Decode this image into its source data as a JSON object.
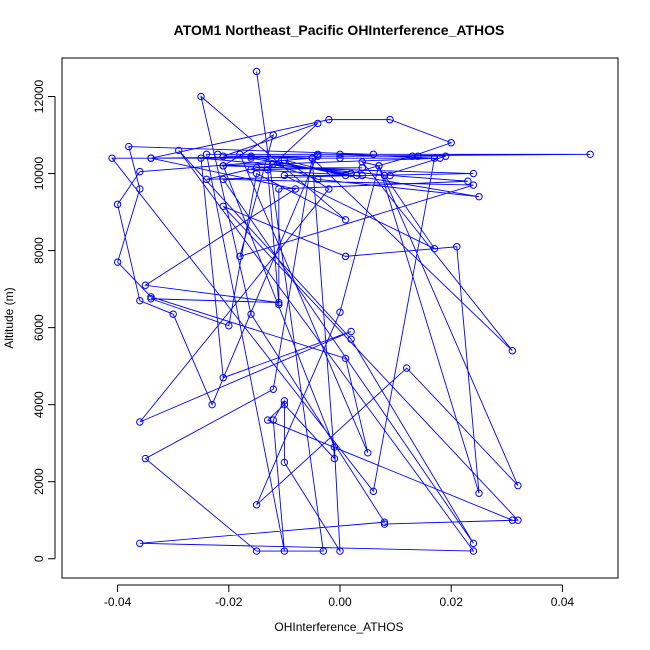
{
  "chart_data": {
    "type": "line",
    "title": "ATOM1 Northeast_Pacific OHInterference_ATHOS",
    "xlabel": "OHInterference_ATHOS",
    "ylabel": "Altitude (m)",
    "xlim": [
      -0.05,
      0.05
    ],
    "ylim": [
      -500,
      13000
    ],
    "x_ticks": [
      -0.04,
      -0.02,
      0.0,
      0.02,
      0.04
    ],
    "x_tick_labels": [
      "-0.04",
      "-0.02",
      "0.00",
      "0.02",
      "0.04"
    ],
    "y_ticks": [
      0,
      2000,
      4000,
      6000,
      8000,
      10000,
      12000
    ],
    "y_tick_labels": [
      "0",
      "2000",
      "4000",
      "6000",
      "8000",
      "10000",
      "12000"
    ],
    "grid": false,
    "legend": "none",
    "marker": "open-circle",
    "series_color": "#0000ff",
    "series": [
      {
        "points": [
          [
            -0.015,
            12650
          ],
          [
            -0.003,
            200
          ],
          [
            -0.015,
            200
          ],
          [
            -0.035,
            2600
          ],
          [
            -0.012,
            4400
          ],
          [
            -0.005,
            10400
          ],
          [
            -0.036,
            10050
          ],
          [
            -0.04,
            9200
          ],
          [
            -0.036,
            6700
          ],
          [
            -0.03,
            6350
          ],
          [
            -0.023,
            4000
          ],
          [
            -0.004,
            10500
          ],
          [
            0.006,
            10500
          ],
          [
            -0.038,
            10700
          ],
          [
            -0.036,
            9600
          ],
          [
            -0.04,
            7700
          ],
          [
            -0.034,
            6800
          ],
          [
            0.001,
            5200
          ],
          [
            0.005,
            2750
          ],
          [
            -0.018,
            10500
          ],
          [
            0.0,
            10500
          ],
          [
            0.017,
            10400
          ],
          [
            0.006,
            1750
          ],
          [
            -0.041,
            10400
          ],
          [
            0.0,
            10400
          ],
          [
            -0.034,
            10400
          ],
          [
            -0.008,
            9600
          ],
          [
            -0.035,
            7100
          ],
          [
            -0.011,
            6650
          ],
          [
            -0.034,
            6750
          ],
          [
            -0.02,
            6050
          ],
          [
            -0.015,
            10000
          ],
          [
            0.001,
            8800
          ],
          [
            -0.025,
            12000
          ],
          [
            -0.016,
            6350
          ],
          [
            0.008,
            950
          ],
          [
            -0.036,
            400
          ],
          [
            0.024,
            200
          ],
          [
            -0.029,
            10600
          ],
          [
            0.002,
            5700
          ],
          [
            0.024,
            400
          ],
          [
            -0.021,
            9850
          ],
          [
            0.024,
            9700
          ],
          [
            -0.018,
            7850
          ],
          [
            -0.012,
            11000
          ],
          [
            -0.021,
            10200
          ],
          [
            0.018,
            10400
          ],
          [
            -0.016,
            10400
          ],
          [
            0.025,
            9400
          ],
          [
            -0.004,
            9850
          ],
          [
            -0.012,
            10250
          ],
          [
            0.002,
            10000
          ],
          [
            0.013,
            10450
          ],
          [
            0.02,
            10800
          ],
          [
            0.009,
            11400
          ],
          [
            -0.002,
            11400
          ],
          [
            -0.034,
            10400
          ],
          [
            -0.004,
            10450
          ],
          [
            0.045,
            10500
          ],
          [
            -0.022,
            10500
          ],
          [
            -0.024,
            10500
          ],
          [
            -0.01,
            200
          ],
          [
            -0.012,
            3600
          ],
          [
            -0.01,
            4100
          ],
          [
            -0.01,
            2500
          ],
          [
            0.0,
            200
          ],
          [
            -0.001,
            2900
          ],
          [
            -0.021,
            10200
          ],
          [
            0.024,
            10000
          ],
          [
            0.004,
            9950
          ],
          [
            -0.024,
            9850
          ],
          [
            -0.015,
            10150
          ],
          [
            0.004,
            10150
          ],
          [
            -0.016,
            10100
          ],
          [
            0.003,
            9950
          ],
          [
            -0.01,
            9950
          ],
          [
            0.017,
            8050
          ],
          [
            0.008,
            9950
          ],
          [
            0.019,
            10450
          ],
          [
            0.014,
            10450
          ],
          [
            -0.021,
            10450
          ],
          [
            -0.004,
            11300
          ],
          [
            -0.013,
            10100
          ],
          [
            -0.011,
            6600
          ],
          [
            -0.011,
            9600
          ],
          [
            0.023,
            9800
          ],
          [
            0.009,
            9950
          ],
          [
            -0.025,
            10400
          ],
          [
            -0.021,
            4700
          ],
          [
            0.002,
            5900
          ],
          [
            -0.036,
            3550
          ],
          [
            -0.002,
            9600
          ],
          [
            -0.01,
            10350
          ],
          [
            0.001,
            9950
          ],
          [
            -0.016,
            10450
          ],
          [
            -0.005,
            10400
          ],
          [
            0.031,
            5400
          ],
          [
            0.004,
            10300
          ],
          [
            0.007,
            10200
          ],
          [
            0.0,
            6400
          ],
          [
            -0.015,
            1400
          ],
          [
            0.012,
            4950
          ],
          [
            0.032,
            1900
          ],
          [
            0.007,
            10200
          ],
          [
            0.025,
            1700
          ],
          [
            0.021,
            8100
          ],
          [
            0.001,
            7850
          ],
          [
            -0.021,
            9150
          ],
          [
            0.032,
            1000
          ],
          [
            0.008,
            900
          ],
          [
            0.031,
            1000
          ],
          [
            -0.013,
            3600
          ],
          [
            -0.01,
            4000
          ],
          [
            -0.001,
            2600
          ],
          [
            -0.005,
            10400
          ]
        ]
      }
    ]
  }
}
